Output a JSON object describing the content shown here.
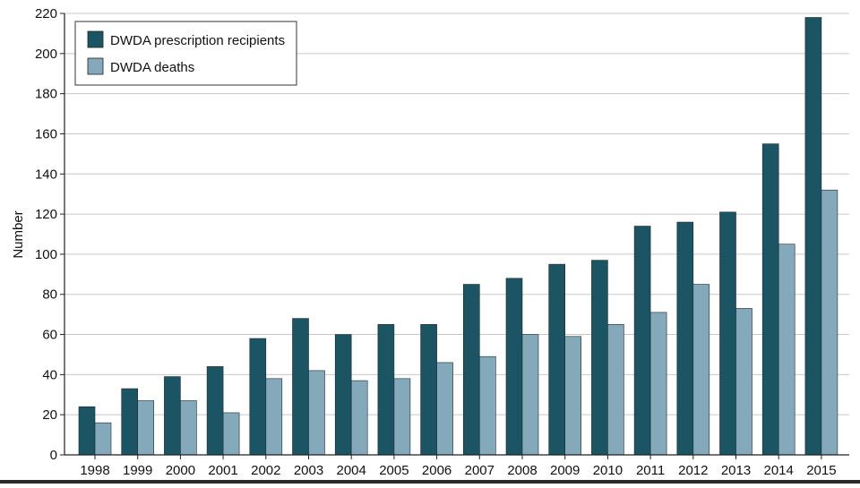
{
  "chart_data": {
    "type": "bar",
    "ylabel": "Number",
    "xlabel": "",
    "ylim": [
      0,
      220
    ],
    "yticks": [
      0,
      20,
      40,
      60,
      80,
      100,
      120,
      140,
      160,
      180,
      200,
      220
    ],
    "grid": true,
    "legend_position": "top-left",
    "categories": [
      "1998",
      "1999",
      "2000",
      "2001",
      "2002",
      "2003",
      "2004",
      "2005",
      "2006",
      "2007",
      "2008",
      "2009",
      "2010",
      "2011",
      "2012",
      "2013",
      "2014",
      "2015"
    ],
    "series": [
      {
        "name": "DWDA prescription recipients",
        "color": "#1b5462",
        "values": [
          24,
          33,
          39,
          44,
          58,
          68,
          60,
          65,
          65,
          85,
          88,
          95,
          97,
          114,
          116,
          121,
          155,
          218
        ]
      },
      {
        "name": "DWDA deaths",
        "color": "#84a9ba",
        "values": [
          16,
          27,
          27,
          21,
          38,
          42,
          37,
          38,
          46,
          49,
          60,
          59,
          65,
          71,
          85,
          73,
          105,
          132
        ]
      }
    ]
  }
}
